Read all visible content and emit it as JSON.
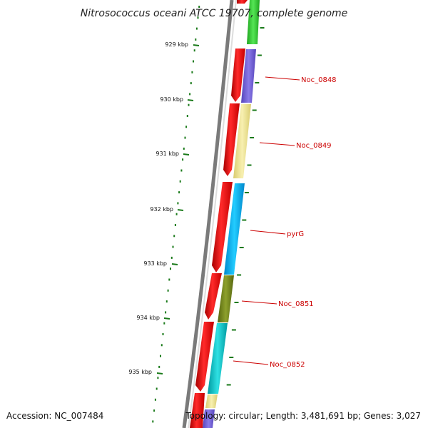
{
  "title": "Nitrosococcus oceani ATCC 19707, complete genome",
  "footer": {
    "accession": "Accession: NC_007484",
    "topology": "Topology: circular; Length: 3,481,691 bp; Genes: 3,027"
  },
  "scale_labels": [
    "929 kbp",
    "930 kbp",
    "931 kbp",
    "932 kbp",
    "933 kbp",
    "934 kbp",
    "935 kbp"
  ],
  "gene_labels": [
    "Noc_0848",
    "Noc_0849",
    "pyrG",
    "Noc_0851",
    "Noc_0852"
  ],
  "colors": {
    "backbone": "#888888",
    "red_features": "#ee1111",
    "tick": "#1a7a1a",
    "label_line": "#cc0000",
    "gene_colors": [
      "#39d439",
      "#7766dd",
      "#f1e79a",
      "#00bbff",
      "#7a8c1e",
      "#11c8cc"
    ]
  }
}
